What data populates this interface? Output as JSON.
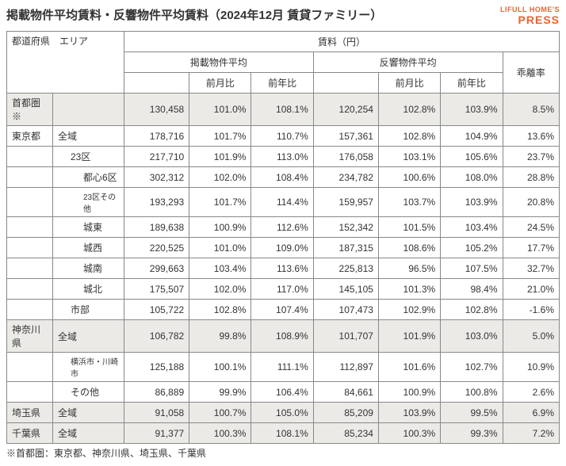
{
  "title": "掲載物件平均賃料・反響物件平均賃料（2024年12月 賃貸ファミリー）",
  "brand_top": "LIFULL HOME'S",
  "brand_bottom": "PRESS",
  "headers": {
    "pref_area": "都道府県　エリア",
    "rent": "賃料（円）",
    "listed_avg": "掲載物件平均",
    "response_avg": "反響物件平均",
    "divergence": "乖離率",
    "mom": "前月比",
    "yoy": "前年比"
  },
  "rows": [
    {
      "shade": true,
      "pref": "首都圏※",
      "area": "",
      "indent": 0,
      "small": false,
      "a": "130,458",
      "b": "101.0%",
      "c": "108.1%",
      "d": "120,254",
      "e": "102.8%",
      "f": "103.9%",
      "g": "8.5%"
    },
    {
      "shade": false,
      "pref": "東京都",
      "area": "全域",
      "indent": 1,
      "small": false,
      "a": "178,716",
      "b": "101.7%",
      "c": "110.7%",
      "d": "157,361",
      "e": "102.8%",
      "f": "104.9%",
      "g": "13.6%"
    },
    {
      "shade": false,
      "pref": "",
      "area": "23区",
      "indent": 2,
      "small": false,
      "a": "217,710",
      "b": "101.9%",
      "c": "113.0%",
      "d": "176,058",
      "e": "103.1%",
      "f": "105.6%",
      "g": "23.7%"
    },
    {
      "shade": false,
      "pref": "",
      "area": "都心6区",
      "indent": 3,
      "small": false,
      "a": "302,312",
      "b": "102.0%",
      "c": "108.4%",
      "d": "234,782",
      "e": "100.6%",
      "f": "108.0%",
      "g": "28.8%"
    },
    {
      "shade": false,
      "pref": "",
      "area": "23区その他",
      "indent": 3,
      "small": true,
      "a": "193,293",
      "b": "101.7%",
      "c": "114.4%",
      "d": "159,957",
      "e": "103.7%",
      "f": "103.9%",
      "g": "20.8%"
    },
    {
      "shade": false,
      "pref": "",
      "area": "城東",
      "indent": 3,
      "small": false,
      "a": "189,638",
      "b": "100.9%",
      "c": "112.6%",
      "d": "152,342",
      "e": "101.5%",
      "f": "103.4%",
      "g": "24.5%"
    },
    {
      "shade": false,
      "pref": "",
      "area": "城西",
      "indent": 3,
      "small": false,
      "a": "220,525",
      "b": "101.0%",
      "c": "109.0%",
      "d": "187,315",
      "e": "108.6%",
      "f": "105.2%",
      "g": "17.7%"
    },
    {
      "shade": false,
      "pref": "",
      "area": "城南",
      "indent": 3,
      "small": false,
      "a": "299,663",
      "b": "103.4%",
      "c": "113.6%",
      "d": "225,813",
      "e": "96.5%",
      "f": "107.5%",
      "g": "32.7%"
    },
    {
      "shade": false,
      "pref": "",
      "area": "城北",
      "indent": 3,
      "small": false,
      "a": "175,507",
      "b": "102.0%",
      "c": "117.0%",
      "d": "145,105",
      "e": "101.3%",
      "f": "98.4%",
      "g": "21.0%"
    },
    {
      "shade": false,
      "pref": "",
      "area": "市部",
      "indent": 2,
      "small": false,
      "a": "105,722",
      "b": "102.8%",
      "c": "107.4%",
      "d": "107,473",
      "e": "102.9%",
      "f": "102.8%",
      "g": "-1.6%"
    },
    {
      "shade": true,
      "pref": "神奈川県",
      "area": "全域",
      "indent": 1,
      "small": false,
      "a": "106,782",
      "b": "99.8%",
      "c": "108.9%",
      "d": "101,707",
      "e": "101.9%",
      "f": "103.0%",
      "g": "5.0%"
    },
    {
      "shade": false,
      "pref": "",
      "area": "横浜市・川崎市",
      "indent": 2,
      "small": true,
      "a": "125,188",
      "b": "100.1%",
      "c": "111.1%",
      "d": "112,897",
      "e": "101.6%",
      "f": "102.7%",
      "g": "10.9%"
    },
    {
      "shade": false,
      "pref": "",
      "area": "その他",
      "indent": 2,
      "small": false,
      "a": "86,889",
      "b": "99.9%",
      "c": "106.4%",
      "d": "84,661",
      "e": "100.9%",
      "f": "100.8%",
      "g": "2.6%"
    },
    {
      "shade": true,
      "pref": "埼玉県",
      "area": "全域",
      "indent": 1,
      "small": false,
      "a": "91,058",
      "b": "100.7%",
      "c": "105.0%",
      "d": "85,209",
      "e": "103.9%",
      "f": "99.5%",
      "g": "6.9%"
    },
    {
      "shade": true,
      "pref": "千葉県",
      "area": "全域",
      "indent": 1,
      "small": false,
      "a": "91,377",
      "b": "100.3%",
      "c": "108.1%",
      "d": "85,234",
      "e": "100.3%",
      "f": "99.3%",
      "g": "7.2%"
    }
  ],
  "footnote": "※首都圏：東京都、神奈川県、埼玉県、千葉県"
}
